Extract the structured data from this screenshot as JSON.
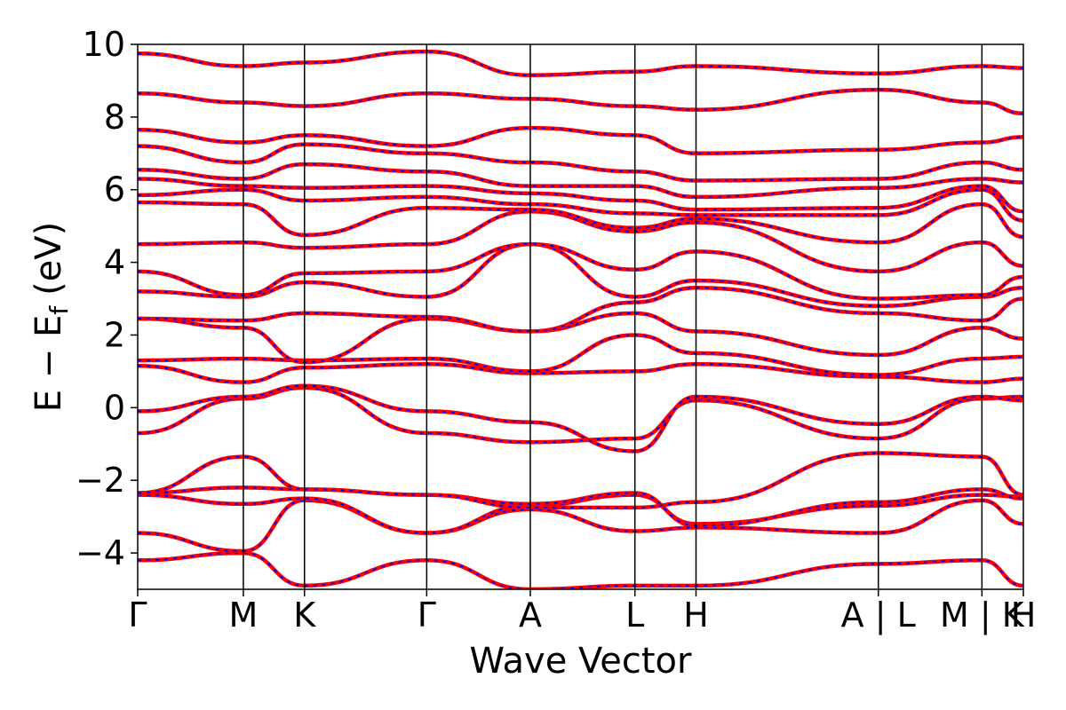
{
  "chart_data": {
    "type": "line",
    "title": "",
    "xlabel": "Wave Vector",
    "ylabel": "E − E",
    "ylabel_subscript": "f",
    "ylabel_unit": "(eV)",
    "ylim": [
      -5,
      10
    ],
    "yticks": [
      -4,
      -2,
      0,
      2,
      4,
      6,
      8,
      10
    ],
    "ytick_labels": [
      "−4",
      "−2",
      "0",
      "2",
      "4",
      "6",
      "8",
      "10"
    ],
    "xlim": [
      0,
      8.55
    ],
    "kpoint_positions": [
      0,
      1.02,
      1.61,
      2.79,
      3.79,
      4.8,
      5.39,
      7.15,
      8.15,
      8.55
    ],
    "kpoint_labels": [
      "Γ",
      "M",
      "K",
      "Γ",
      "A",
      "L",
      "H",
      "A | L",
      "M | K",
      "H"
    ],
    "grid": false,
    "legend": "none",
    "colors": {
      "series_a": "#ff0000",
      "series_b": "#0000ff",
      "kline": "#000000"
    },
    "series": [
      {
        "style": "solid red (thick)"
      },
      {
        "style": "dashed blue (thin)"
      }
    ],
    "bands": [
      {
        "k": [
          0,
          1.02,
          1.61,
          2.79,
          3.79,
          4.8,
          5.39,
          7.15,
          8.15,
          8.55
        ],
        "E": [
          -4.2,
          -4.0,
          -4.9,
          -4.2,
          -5.0,
          -4.9,
          -4.9,
          -4.3,
          -4.2,
          -4.9
        ]
      },
      {
        "k": [
          0,
          1.02,
          1.61,
          2.79,
          3.79,
          4.8,
          5.39,
          7.15,
          8.15,
          8.55
        ],
        "E": [
          -3.45,
          -3.95,
          -2.55,
          -3.45,
          -2.8,
          -3.4,
          -3.3,
          -3.45,
          -2.55,
          -3.2
        ]
      },
      {
        "k": [
          0,
          1.02,
          1.61,
          2.79,
          3.79,
          4.8,
          5.39,
          7.15,
          8.15,
          8.55
        ],
        "E": [
          -2.4,
          -2.65,
          -2.5,
          -3.45,
          -2.7,
          -2.4,
          -3.2,
          -2.7,
          -2.4,
          -2.45
        ]
      },
      {
        "k": [
          0,
          1.02,
          1.61,
          2.79,
          3.79,
          4.8,
          5.39,
          7.15,
          8.15,
          8.55
        ],
        "E": [
          -2.35,
          -2.2,
          -2.25,
          -2.4,
          -2.65,
          -2.35,
          -3.25,
          -2.6,
          -2.25,
          -2.5
        ]
      },
      {
        "k": [
          0,
          1.02,
          1.61,
          2.79,
          3.79,
          4.8,
          5.39,
          7.15,
          8.15,
          8.55
        ],
        "E": [
          -2.35,
          -1.35,
          -2.25,
          -2.4,
          -2.75,
          -2.75,
          -2.6,
          -1.25,
          -1.35,
          -2.4
        ]
      },
      {
        "k": [
          0,
          1.02,
          1.61,
          2.79,
          3.79,
          4.8,
          5.39,
          7.15,
          8.15,
          8.55
        ],
        "E": [
          -0.7,
          0.25,
          0.55,
          -0.7,
          -0.95,
          -0.85,
          0.2,
          -0.85,
          0.25,
          0.3
        ]
      },
      {
        "k": [
          0,
          1.02,
          1.61,
          2.79,
          3.79,
          4.8,
          5.39,
          7.15,
          8.15,
          8.55
        ],
        "E": [
          -0.1,
          0.3,
          0.6,
          -0.1,
          -0.4,
          -1.2,
          0.3,
          -0.45,
          0.3,
          0.2
        ]
      },
      {
        "k": [
          0,
          1.02,
          1.61,
          2.79,
          3.79,
          4.8,
          5.39,
          7.15,
          8.15,
          8.55
        ],
        "E": [
          1.15,
          0.7,
          1.1,
          1.2,
          0.95,
          1.0,
          1.2,
          0.85,
          0.7,
          0.8
        ]
      },
      {
        "k": [
          0,
          1.02,
          1.61,
          2.79,
          3.79,
          4.8,
          5.39,
          7.15,
          8.15,
          8.55
        ],
        "E": [
          1.3,
          1.35,
          1.3,
          1.35,
          1.0,
          2.0,
          1.5,
          0.9,
          1.35,
          1.4
        ]
      },
      {
        "k": [
          0,
          1.02,
          1.61,
          2.79,
          3.79,
          4.8,
          5.39,
          7.15,
          8.15,
          8.55
        ],
        "E": [
          2.45,
          2.2,
          1.25,
          2.45,
          2.1,
          2.6,
          2.1,
          1.45,
          2.2,
          1.9
        ]
      },
      {
        "k": [
          0,
          1.02,
          1.61,
          2.79,
          3.79,
          4.8,
          5.39,
          7.15,
          8.15,
          8.55
        ],
        "E": [
          2.45,
          2.4,
          2.6,
          2.5,
          2.1,
          2.9,
          3.3,
          2.6,
          2.4,
          3.0
        ]
      },
      {
        "k": [
          0,
          1.02,
          1.61,
          2.79,
          3.79,
          4.8,
          5.39,
          7.15,
          8.15,
          8.55
        ],
        "E": [
          3.2,
          3.05,
          3.45,
          3.05,
          4.5,
          3.05,
          3.5,
          2.8,
          3.05,
          3.3
        ]
      },
      {
        "k": [
          0,
          1.02,
          1.61,
          2.79,
          3.79,
          4.8,
          5.39,
          7.15,
          8.15,
          8.55
        ],
        "E": [
          3.75,
          3.1,
          3.7,
          3.75,
          4.5,
          3.8,
          4.3,
          3.0,
          3.1,
          3.6
        ]
      },
      {
        "k": [
          0,
          1.02,
          1.61,
          2.79,
          3.79,
          4.8,
          5.39,
          7.15,
          8.15,
          8.55
        ],
        "E": [
          4.5,
          4.55,
          4.4,
          4.5,
          5.4,
          4.85,
          5.1,
          3.75,
          4.55,
          3.9
        ]
      },
      {
        "k": [
          0,
          1.02,
          1.61,
          2.79,
          3.79,
          4.8,
          5.39,
          7.15,
          8.15,
          8.55
        ],
        "E": [
          5.65,
          5.6,
          4.75,
          5.5,
          5.45,
          4.95,
          5.2,
          4.55,
          5.6,
          4.7
        ]
      },
      {
        "k": [
          0,
          1.02,
          1.61,
          2.79,
          3.79,
          4.8,
          5.39,
          7.15,
          8.15,
          8.55
        ],
        "E": [
          5.85,
          6.0,
          5.7,
          5.8,
          5.6,
          5.35,
          5.3,
          5.3,
          6.0,
          5.15
        ]
      },
      {
        "k": [
          0,
          1.02,
          1.61,
          2.79,
          3.79,
          4.8,
          5.39,
          7.15,
          8.15,
          8.55
        ],
        "E": [
          6.3,
          6.1,
          6.05,
          6.1,
          5.9,
          5.7,
          5.45,
          5.5,
          6.1,
          5.4
        ]
      },
      {
        "k": [
          0,
          1.02,
          1.61,
          2.79,
          3.79,
          4.8,
          5.39,
          7.15,
          8.15,
          8.55
        ],
        "E": [
          6.55,
          6.3,
          6.7,
          6.5,
          6.1,
          6.1,
          5.8,
          6.05,
          6.3,
          6.2
        ]
      },
      {
        "k": [
          0,
          1.02,
          1.61,
          2.79,
          3.79,
          4.8,
          5.39,
          7.15,
          8.15,
          8.55
        ],
        "E": [
          7.2,
          6.75,
          7.25,
          7.0,
          6.75,
          6.5,
          6.25,
          6.3,
          6.75,
          6.55
        ]
      },
      {
        "k": [
          0,
          1.02,
          1.61,
          2.79,
          3.79,
          4.8,
          5.39,
          7.15,
          8.15,
          8.55
        ],
        "E": [
          7.65,
          7.3,
          7.5,
          7.2,
          7.7,
          7.5,
          7.0,
          7.1,
          7.3,
          7.45
        ]
      },
      {
        "k": [
          0,
          1.02,
          1.61,
          2.79,
          3.79,
          4.8,
          5.39,
          7.15,
          8.15,
          8.55
        ],
        "E": [
          8.65,
          8.4,
          8.3,
          8.65,
          8.5,
          8.3,
          8.2,
          8.75,
          8.4,
          8.1
        ]
      },
      {
        "k": [
          0,
          1.02,
          1.61,
          2.79,
          3.79,
          4.8,
          5.39,
          7.15,
          8.15,
          8.55
        ],
        "E": [
          9.75,
          9.4,
          9.5,
          9.8,
          9.15,
          9.25,
          9.4,
          9.2,
          9.4,
          9.35
        ]
      }
    ]
  }
}
